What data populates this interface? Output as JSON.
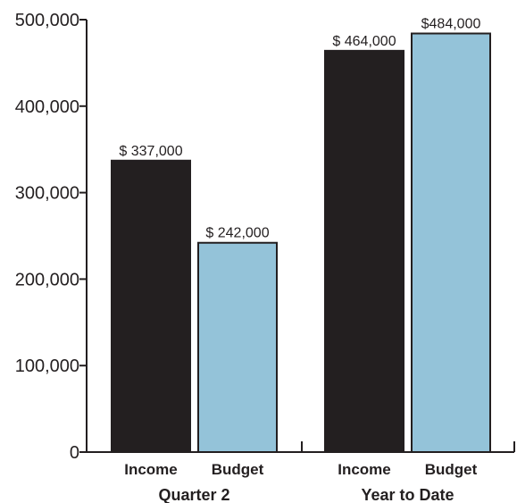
{
  "chart_data": {
    "type": "bar",
    "groups": [
      {
        "label": "Quarter 2",
        "bars": [
          {
            "category": "Income",
            "value": 337000,
            "label": "$ 337,000",
            "color": "#231f20"
          },
          {
            "category": "Budget",
            "value": 242000,
            "label": "$ 242,000",
            "color": "#94c3d9"
          }
        ]
      },
      {
        "label": "Year to Date",
        "bars": [
          {
            "category": "Income",
            "value": 464000,
            "label": "$ 464,000",
            "color": "#231f20"
          },
          {
            "category": "Budget",
            "value": 484000,
            "label": "$484,000",
            "color": "#94c3d9"
          }
        ]
      }
    ],
    "ylim": [
      0,
      500000
    ],
    "yticks": [
      0,
      100000,
      200000,
      300000,
      400000,
      500000
    ],
    "ytick_labels": [
      "0",
      "100,000",
      "200,000",
      "300,000",
      "400,000",
      "500,000"
    ],
    "xlabel": "",
    "ylabel": "",
    "title": "",
    "grid": false,
    "legend": "none"
  }
}
